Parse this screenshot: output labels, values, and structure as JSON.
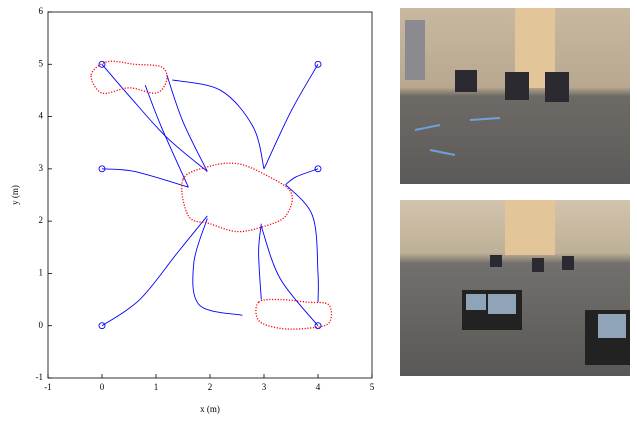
{
  "chart_data": {
    "type": "line",
    "xlabel": "x (m)",
    "ylabel": "y (m)",
    "xlim": [
      -1,
      5
    ],
    "xticks": [
      -1,
      0,
      1,
      2,
      3,
      4,
      5
    ],
    "ylim": [
      -1,
      6
    ],
    "yticks": [
      -1,
      0,
      1,
      2,
      3,
      4,
      5,
      6
    ],
    "series": [
      {
        "color": "#0000ff",
        "x": [
          0,
          0.5,
          1.2,
          1.95
        ],
        "y": [
          5,
          4.4,
          3.6,
          2.95
        ]
      },
      {
        "color": "#0000ff",
        "x": [
          1.2,
          1.5,
          1.95
        ],
        "y": [
          4.8,
          3.9,
          2.95
        ]
      },
      {
        "color": "#0000ff",
        "x": [
          0.8,
          1.1,
          1.6
        ],
        "y": [
          4.6,
          3.8,
          2.65
        ]
      },
      {
        "color": "#0000ff",
        "x": [
          1.3,
          2.2,
          2.8,
          3
        ],
        "y": [
          4.7,
          4.5,
          3.8,
          3
        ]
      },
      {
        "color": "#0000ff",
        "x": [
          4,
          3.5,
          3
        ],
        "y": [
          5,
          4.1,
          3
        ]
      },
      {
        "color": "#0000ff",
        "x": [
          0,
          0.6,
          1.6
        ],
        "y": [
          3,
          2.95,
          2.65
        ]
      },
      {
        "color": "#0000ff",
        "x": [
          4,
          3.6,
          3.4
        ],
        "y": [
          3,
          2.85,
          2.7
        ]
      },
      {
        "color": "#0000ff",
        "x": [
          3.4,
          3.9,
          4,
          4
        ],
        "y": [
          2.7,
          2.1,
          1.0,
          0.45
        ]
      },
      {
        "color": "#0000ff",
        "x": [
          0,
          0.7,
          1.4,
          1.95
        ],
        "y": [
          0,
          0.5,
          1.4,
          2.1
        ]
      },
      {
        "color": "#0000ff",
        "x": [
          2.6,
          1.8,
          1.7,
          1.95
        ],
        "y": [
          0.2,
          0.4,
          1.2,
          2.05
        ]
      },
      {
        "color": "#0000ff",
        "x": [
          4,
          3.3,
          2.95
        ],
        "y": [
          0,
          0.9,
          1.9
        ]
      },
      {
        "color": "#0000ff",
        "x": [
          2.95,
          2.9,
          2.95
        ],
        "y": [
          0.5,
          1.4,
          1.95
        ]
      },
      {
        "color": "#ff0000",
        "style": "dotted",
        "closed": true,
        "x": [
          -0.2,
          0.1,
          0.6,
          1.1,
          1.2,
          1.0,
          0.5,
          0.0
        ],
        "y": [
          4.8,
          5.05,
          5.0,
          4.95,
          4.7,
          4.45,
          4.55,
          4.45
        ]
      },
      {
        "color": "#ff0000",
        "style": "dotted",
        "closed": true,
        "x": [
          1.5,
          2.0,
          2.5,
          3.0,
          3.5,
          3.4,
          3.0,
          2.5,
          2.0,
          1.6
        ],
        "y": [
          2.8,
          3.05,
          3.1,
          2.9,
          2.55,
          2.1,
          1.9,
          1.8,
          1.95,
          2.1
        ]
      },
      {
        "color": "#ff0000",
        "style": "dotted",
        "closed": true,
        "x": [
          2.9,
          3.3,
          3.8,
          4.2,
          4.2,
          3.8,
          3.3,
          2.9
        ],
        "y": [
          0.45,
          0.5,
          0.45,
          0.4,
          0.05,
          -0.05,
          -0.05,
          0.1
        ]
      },
      {
        "color": "#0000ff",
        "marker": "circle",
        "line": false,
        "x": [
          0,
          4,
          0,
          4,
          0,
          4
        ],
        "y": [
          5,
          5,
          3,
          3,
          0,
          0
        ]
      }
    ]
  }
}
